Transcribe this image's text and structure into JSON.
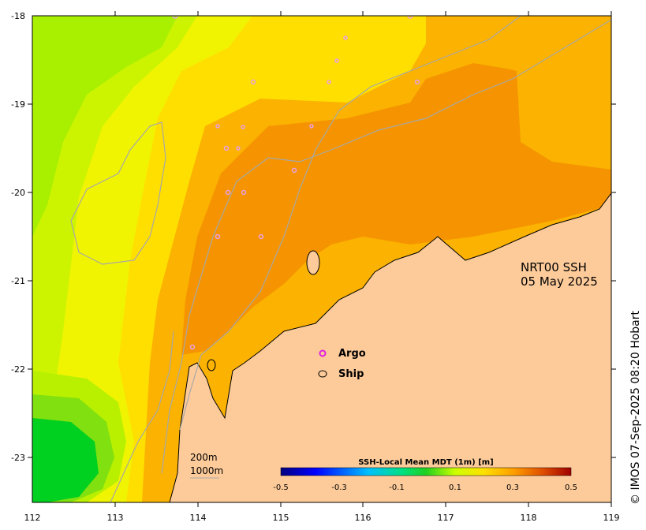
{
  "title": {
    "line1": "NRT00 SSH",
    "line2": "05 May 2025"
  },
  "credit": "© IMOS 07-Sep-2025 08:20 Hobart",
  "x_axis": {
    "ticks": [
      "112",
      "113",
      "114",
      "115",
      "116",
      "117",
      "118",
      "119"
    ]
  },
  "y_axis": {
    "ticks": [
      "-18",
      "-19",
      "-20",
      "-21",
      "-22",
      "-23"
    ]
  },
  "legend": {
    "argo": "Argo",
    "ship": "Ship",
    "argo_color": "#e020e0",
    "ship_color": "#000000"
  },
  "scale_labels": {
    "contour1": "200m",
    "contour2": "1000m"
  },
  "colorbar": {
    "title": "SSH-Local Mean MDT (1m) [m]",
    "ticks": [
      "-0.5",
      "-0.3",
      "-0.1",
      "0.1",
      "0.3",
      "0.5"
    ],
    "range": [
      -0.5,
      0.5
    ]
  },
  "colors": {
    "land": "#fdcb9a",
    "bathymetry": "#a8a8a8"
  }
}
